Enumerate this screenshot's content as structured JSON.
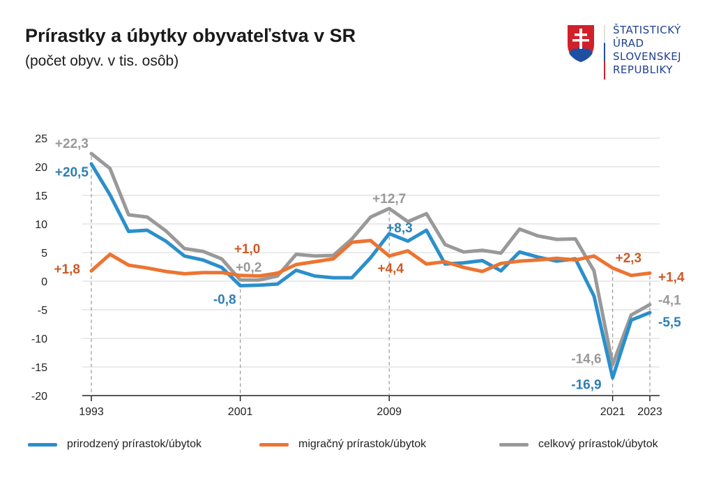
{
  "header": {
    "title": "Prírastky a úbytky obyvateľstva v SR",
    "subtitle": "(počet obyv. v tis. osôb)"
  },
  "logo": {
    "lines": [
      "ŠTATISTICKÝ",
      "ÚRAD",
      "SLOVENSKEJ",
      "REPUBLIKY"
    ],
    "icon": "slovak-coat-of-arms"
  },
  "chart_data": {
    "type": "line",
    "title": "Prírastky a úbytky obyvateľstva v SR",
    "subtitle": "(počet obyv. v tis. osôb)",
    "xlabel": "",
    "ylabel": "",
    "x": [
      1993,
      1994,
      1995,
      1996,
      1997,
      1998,
      1999,
      2000,
      2001,
      2002,
      2003,
      2004,
      2005,
      2006,
      2007,
      2008,
      2009,
      2010,
      2011,
      2012,
      2013,
      2014,
      2015,
      2016,
      2017,
      2018,
      2019,
      2020,
      2021,
      2022,
      2023
    ],
    "x_tick_labels": [
      "1993",
      "2001",
      "2009",
      "2021",
      "2023"
    ],
    "y_ticks": [
      25,
      20,
      15,
      10,
      5,
      0,
      -5,
      -10,
      -15,
      -20
    ],
    "ylim": [
      -20,
      25
    ],
    "grid": true,
    "legend_position": "bottom",
    "series": [
      {
        "name": "prirodzený prírastok/úbytok",
        "color": "#2b8fcb",
        "values": [
          20.5,
          15.1,
          8.7,
          8.9,
          7.0,
          4.4,
          3.7,
          2.4,
          -0.8,
          -0.7,
          -0.5,
          1.9,
          0.9,
          0.6,
          0.6,
          4.1,
          8.3,
          7.0,
          8.9,
          3.0,
          3.2,
          3.6,
          1.8,
          5.1,
          4.2,
          3.5,
          3.9,
          -2.6,
          -16.9,
          -6.8,
          -5.5
        ]
      },
      {
        "name": "migračný prírastok/úbytok",
        "color": "#ec7431",
        "values": [
          1.8,
          4.7,
          2.8,
          2.3,
          1.7,
          1.3,
          1.5,
          1.5,
          1.0,
          0.9,
          1.4,
          2.9,
          3.4,
          3.9,
          6.8,
          7.1,
          4.4,
          5.3,
          3.0,
          3.4,
          2.4,
          1.7,
          3.1,
          3.5,
          3.7,
          4.0,
          3.7,
          4.4,
          2.3,
          1.0,
          1.4
        ]
      },
      {
        "name": "celkový prírastok/úbytok",
        "color": "#999999",
        "values": [
          22.3,
          19.7,
          11.6,
          11.2,
          8.8,
          5.7,
          5.2,
          3.9,
          0.2,
          0.2,
          0.9,
          4.7,
          4.4,
          4.5,
          7.4,
          11.2,
          12.7,
          10.4,
          11.8,
          6.4,
          5.1,
          5.4,
          4.9,
          9.1,
          7.9,
          7.3,
          7.4,
          1.8,
          -14.6,
          -5.9,
          -4.1
        ]
      }
    ],
    "annotations": [
      {
        "text": "+22,3",
        "year": 1993,
        "series": 2
      },
      {
        "text": "+20,5",
        "year": 1993,
        "series": 0
      },
      {
        "text": "+1,8",
        "year": 1993,
        "series": 1
      },
      {
        "text": "+1,0",
        "year": 2001,
        "series": 1
      },
      {
        "text": "+0,2",
        "year": 2001,
        "series": 2
      },
      {
        "text": "-0,8",
        "year": 2001,
        "series": 0
      },
      {
        "text": "+12,7",
        "year": 2009,
        "series": 2
      },
      {
        "text": "+8,3",
        "year": 2009,
        "series": 0
      },
      {
        "text": "+4,4",
        "year": 2009,
        "series": 1
      },
      {
        "text": "+2,3",
        "year": 2021,
        "series": 1
      },
      {
        "text": "-14,6",
        "year": 2021,
        "series": 2
      },
      {
        "text": "-16,9",
        "year": 2021,
        "series": 0
      },
      {
        "text": "+1,4",
        "year": 2023,
        "series": 1
      },
      {
        "text": "-4,1",
        "year": 2023,
        "series": 2
      },
      {
        "text": "-5,5",
        "year": 2023,
        "series": 0
      }
    ],
    "label_colors": [
      "#2d7fb3",
      "#cc5a27",
      "#999999"
    ]
  }
}
